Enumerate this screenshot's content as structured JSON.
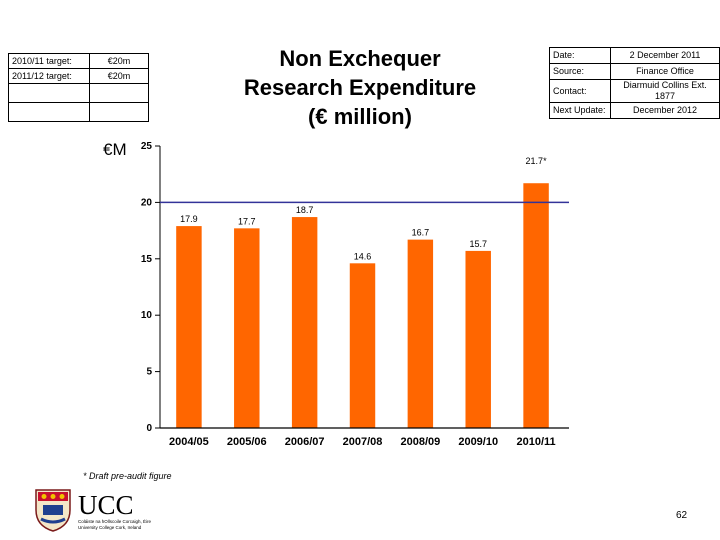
{
  "targets": [
    {
      "label": "2010/11 target:",
      "value": "€20m"
    },
    {
      "label": "2011/12 target:",
      "value": "€20m"
    }
  ],
  "title_lines": [
    "Non Exchequer",
    "Research Expenditure",
    "(€ million)"
  ],
  "info": [
    {
      "label": "Date:",
      "value": "2 December 2011"
    },
    {
      "label": "Source:",
      "value": "Finance Office"
    },
    {
      "label": "Contact:",
      "value": "Diarmuid Collins Ext. 1877"
    },
    {
      "label": "Next Update:",
      "value": "December 2012"
    }
  ],
  "currency_label": "€M",
  "footnote": "* Draft pre-audit figure",
  "page_number": "62",
  "logo": {
    "name": "UCC",
    "subtitle_1": "Coláiste na hOllscoile Corcaigh, Éire",
    "subtitle_2": "University College Cork, Ireland"
  },
  "colors": {
    "bar": "#ff6600",
    "target_line": "#333399"
  },
  "chart_data": {
    "type": "bar",
    "categories": [
      "2004/05",
      "2005/06",
      "2006/07",
      "2007/08",
      "2008/09",
      "2009/10",
      "2010/11"
    ],
    "values": [
      17.9,
      17.7,
      18.7,
      14.6,
      16.7,
      15.7,
      21.7
    ],
    "data_labels": [
      "17.9",
      "17.7",
      "18.7",
      "14.6",
      "16.7",
      "15.7",
      "21.7*"
    ],
    "ylim": [
      0,
      25
    ],
    "yticks": [
      0,
      5,
      10,
      15,
      20,
      25
    ],
    "target_line": 20,
    "grid": false
  }
}
